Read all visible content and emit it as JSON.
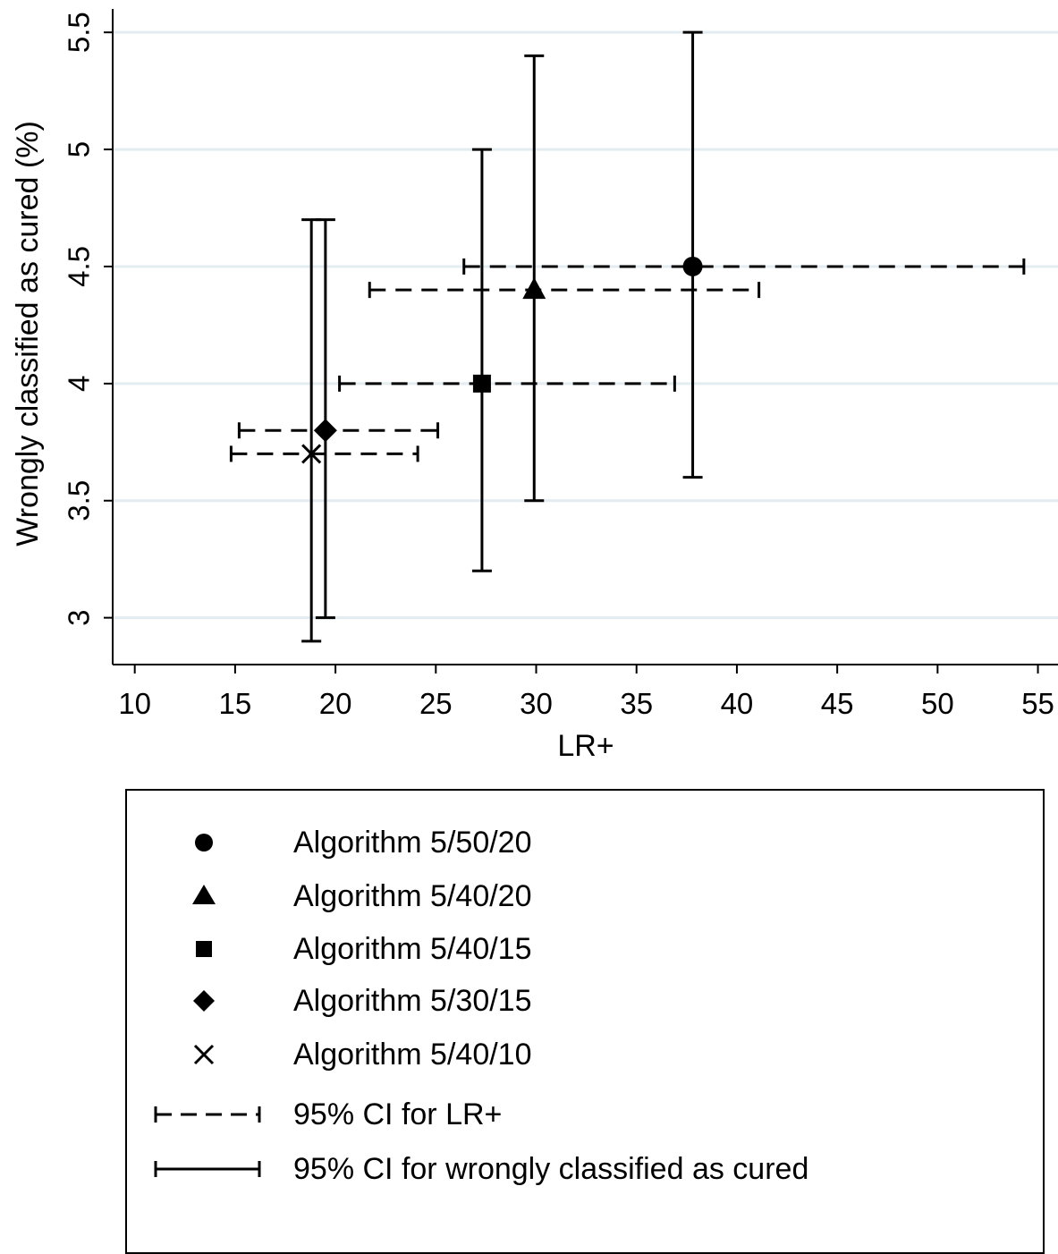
{
  "chart_data": {
    "type": "scatter",
    "title": "",
    "xlabel": "LR+",
    "ylabel": "Wrongly classified as cured (%)",
    "xlim": [
      8.9,
      56
    ],
    "ylim": [
      2.8,
      5.6
    ],
    "xticks": [
      10,
      15,
      20,
      25,
      30,
      35,
      40,
      45,
      50,
      55
    ],
    "yticks": [
      3,
      3.5,
      4,
      4.5,
      5,
      5.5
    ],
    "ytick_labels": [
      "3",
      "3.5",
      "4",
      "4.5",
      "5",
      "5.5"
    ],
    "grid": "horizontal",
    "series": [
      {
        "name": "Algorithm 5/50/20",
        "marker": "circle",
        "x": 37.8,
        "y": 4.5,
        "x_ci": [
          26.4,
          54.3
        ],
        "y_ci": [
          3.6,
          5.5
        ]
      },
      {
        "name": "Algorithm 5/40/20",
        "marker": "triangle",
        "x": 29.9,
        "y": 4.4,
        "x_ci": [
          21.7,
          41.1
        ],
        "y_ci": [
          3.5,
          5.4
        ]
      },
      {
        "name": "Algorithm 5/40/15",
        "marker": "square",
        "x": 27.3,
        "y": 4.0,
        "x_ci": [
          20.2,
          36.9
        ],
        "y_ci": [
          3.2,
          5.0
        ]
      },
      {
        "name": "Algorithm 5/30/15",
        "marker": "diamond",
        "x": 19.5,
        "y": 3.8,
        "x_ci": [
          15.2,
          25.1
        ],
        "y_ci": [
          3.0,
          4.7
        ]
      },
      {
        "name": "Algorithm 5/40/10",
        "marker": "x",
        "x": 18.8,
        "y": 3.7,
        "x_ci": [
          14.8,
          24.1
        ],
        "y_ci": [
          2.9,
          4.7
        ]
      }
    ]
  },
  "legend": {
    "items": [
      {
        "label": "Algorithm 5/50/20",
        "symbol": "circle"
      },
      {
        "label": "Algorithm 5/40/20",
        "symbol": "triangle"
      },
      {
        "label": "Algorithm 5/40/15",
        "symbol": "square"
      },
      {
        "label": "Algorithm 5/30/15",
        "symbol": "diamond"
      },
      {
        "label": "Algorithm 5/40/10",
        "symbol": "x"
      },
      {
        "label": "95% CI for LR+",
        "symbol": "dashed-ci"
      },
      {
        "label": "95% CI for wrongly classified as cured",
        "symbol": "solid-ci"
      }
    ]
  },
  "colors": {
    "ink": "#000000",
    "grid": "#e3ecf1",
    "background": "#ffffff"
  }
}
